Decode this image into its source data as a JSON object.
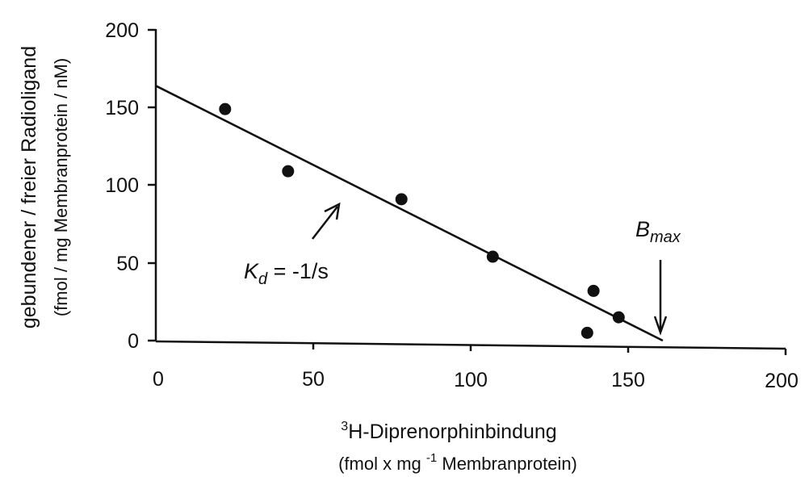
{
  "chart_data": {
    "type": "scatter",
    "x": [
      22,
      42,
      78,
      107,
      139,
      147,
      137
    ],
    "y": [
      149,
      109,
      91,
      54,
      32,
      15,
      5
    ],
    "fit_line": {
      "x": [
        0,
        161
      ],
      "y": [
        164,
        0
      ]
    },
    "xlim": [
      0,
      200
    ],
    "ylim": [
      0,
      200
    ],
    "xticks": [
      "0",
      "50",
      "100",
      "150",
      "200"
    ],
    "yticks": [
      "0",
      "50",
      "100",
      "150",
      "200"
    ],
    "xlabel": {
      "sup": "3",
      "main": "H-Diprenorphinbindung",
      "unit_pre": "(fmol x mg ",
      "unit_sup": "-1",
      "unit_post": " Membranprotein)"
    },
    "ylabel": {
      "main": "gebundener / freier Radioligand",
      "unit": "(fmol / mg Membranprotein / nM)"
    },
    "annotations": {
      "kd": {
        "main": "K",
        "sub": "d",
        "rest": " = -1/s"
      },
      "bmax": {
        "main": "B",
        "sub": "max"
      }
    },
    "grid": false
  }
}
